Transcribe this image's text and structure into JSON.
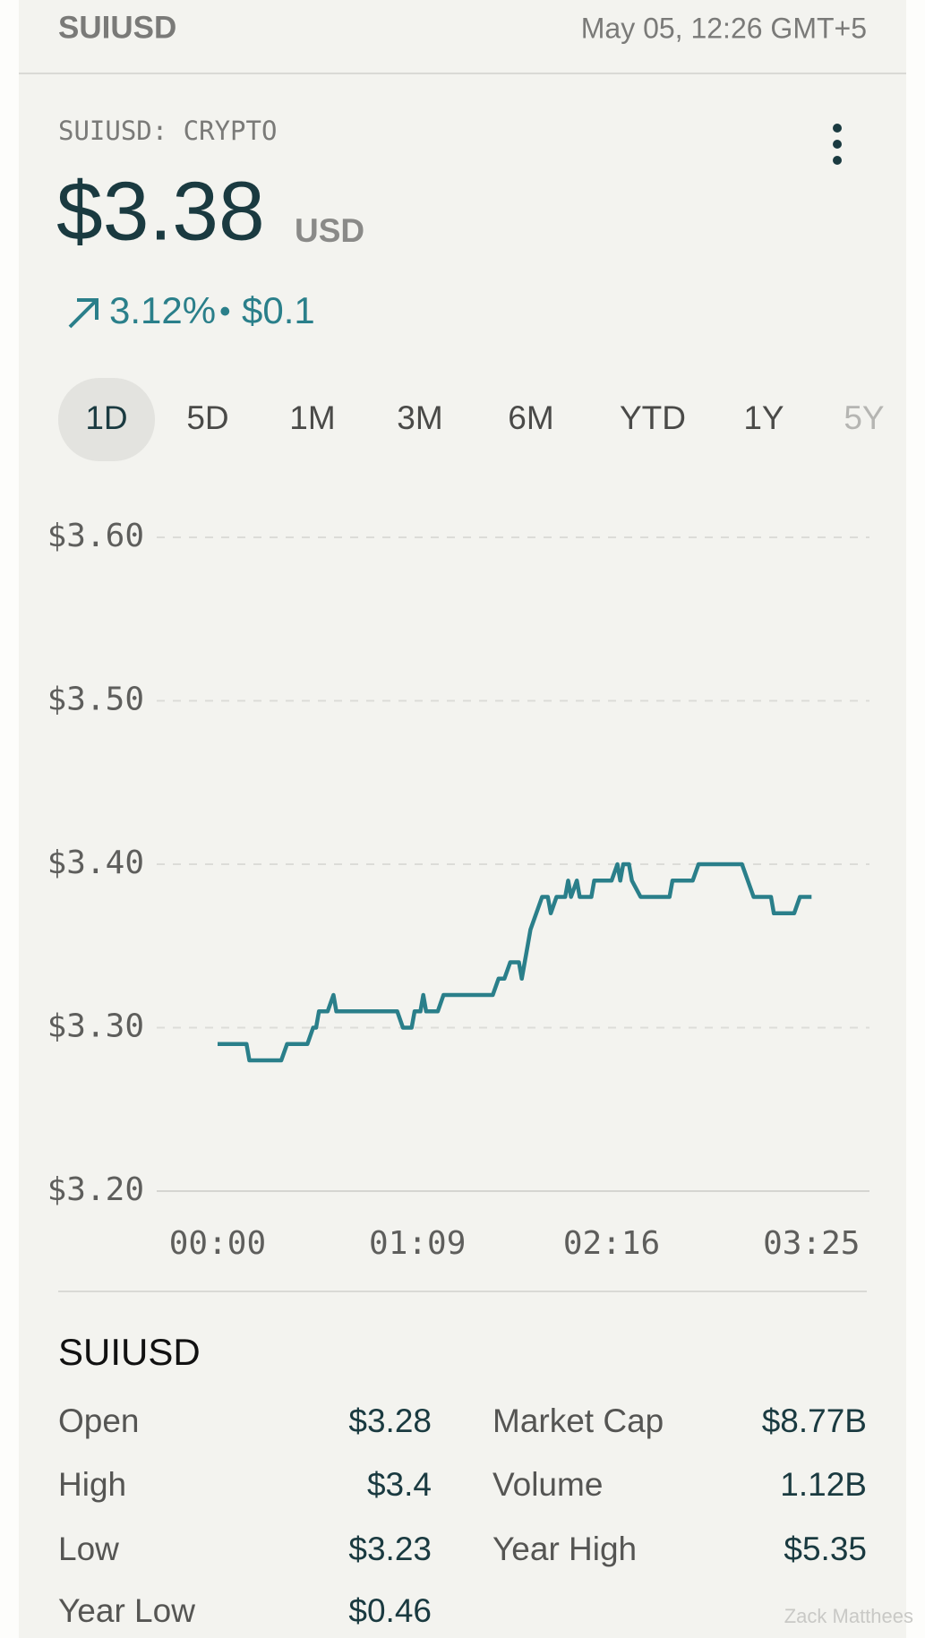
{
  "header": {
    "symbol": "SUIUSD",
    "datetime": "May 05, 12:26 GMT+5"
  },
  "quote": {
    "label": "SUIUSD: CRYPTO",
    "price": "$3.38",
    "currency": "USD",
    "change_percent": "3.12%",
    "separator": "•",
    "change_amount": "$0.1"
  },
  "tabs": [
    "1D",
    "5D",
    "1M",
    "3M",
    "6M",
    "YTD",
    "1Y",
    "5Y"
  ],
  "chart_data": {
    "type": "line",
    "color": "#2a7f8a",
    "grid": true,
    "x": [
      0,
      10,
      11,
      22,
      24,
      31,
      33,
      34,
      35,
      38,
      40,
      41,
      62,
      64,
      67,
      68,
      70,
      71,
      72,
      76,
      78,
      95,
      97,
      99,
      101,
      104,
      105,
      107,
      108,
      110,
      112,
      114,
      115,
      117,
      120,
      121,
      122,
      124,
      125,
      129,
      130,
      136,
      138,
      139,
      140,
      142,
      143,
      146,
      156,
      157,
      164,
      166,
      181,
      183,
      185,
      191,
      192,
      199,
      201,
      205
    ],
    "values": [
      3.29,
      3.29,
      3.28,
      3.28,
      3.29,
      3.29,
      3.3,
      3.3,
      3.31,
      3.31,
      3.32,
      3.31,
      3.31,
      3.3,
      3.3,
      3.31,
      3.31,
      3.32,
      3.31,
      3.31,
      3.32,
      3.32,
      3.33,
      3.33,
      3.34,
      3.34,
      3.33,
      3.35,
      3.36,
      3.37,
      3.38,
      3.38,
      3.37,
      3.38,
      3.38,
      3.39,
      3.38,
      3.39,
      3.38,
      3.38,
      3.39,
      3.39,
      3.4,
      3.39,
      3.4,
      3.4,
      3.39,
      3.38,
      3.38,
      3.39,
      3.39,
      3.4,
      3.4,
      3.39,
      3.38,
      3.38,
      3.37,
      3.37,
      3.38,
      3.38
    ],
    "xlim": [
      -21,
      225
    ],
    "xticks": [
      {
        "value": 0,
        "label": "00:00"
      },
      {
        "value": 69,
        "label": "01:09"
      },
      {
        "value": 136,
        "label": "02:16"
      },
      {
        "value": 205,
        "label": "03:25"
      }
    ],
    "ylim": [
      3.2,
      3.6
    ],
    "yticks": [
      {
        "value": 3.6,
        "label": "$3.60"
      },
      {
        "value": 3.5,
        "label": "$3.50"
      },
      {
        "value": 3.4,
        "label": "$3.40"
      },
      {
        "value": 3.3,
        "label": "$3.30"
      },
      {
        "value": 3.2,
        "label": "$3.20"
      }
    ]
  },
  "stats": {
    "title": "SUIUSD",
    "rows": [
      [
        "Open",
        "$3.28",
        "Market Cap",
        "$8.77B"
      ],
      [
        "High",
        "$3.4",
        "Volume",
        "1.12B"
      ],
      [
        "Low",
        "$3.23",
        "Year High",
        "$5.35"
      ],
      [
        "Year Low",
        "$0.46"
      ]
    ]
  },
  "watermark": "Zack Matthees"
}
